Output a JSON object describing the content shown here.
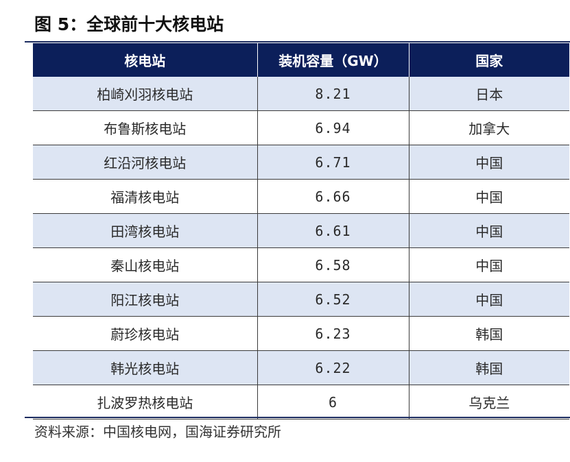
{
  "figure_title": "图 5：全球前十大核电站",
  "table": {
    "headers": [
      "核电站",
      "装机容量（GW）",
      "国家"
    ],
    "rows": [
      [
        "柏崎刈羽核电站",
        "8.21",
        "日本"
      ],
      [
        "布鲁斯核电站",
        "6.94",
        "加拿大"
      ],
      [
        "红沿河核电站",
        "6.71",
        "中国"
      ],
      [
        "福清核电站",
        "6.66",
        "中国"
      ],
      [
        "田湾核电站",
        "6.61",
        "中国"
      ],
      [
        "秦山核电站",
        "6.58",
        "中国"
      ],
      [
        "阳江核电站",
        "6.52",
        "中国"
      ],
      [
        "蔚珍核电站",
        "6.23",
        "韩国"
      ],
      [
        "韩光核电站",
        "6.22",
        "韩国"
      ],
      [
        "扎波罗热核电站",
        "6",
        "乌克兰"
      ]
    ]
  },
  "source_note": "资料来源：中国核电网，国海证券研究所",
  "colors": {
    "header_background": "#0c1f5a",
    "header_text": "#ffffff",
    "shaded_row": "#dde5f3",
    "rule": "#1a2a5e"
  }
}
